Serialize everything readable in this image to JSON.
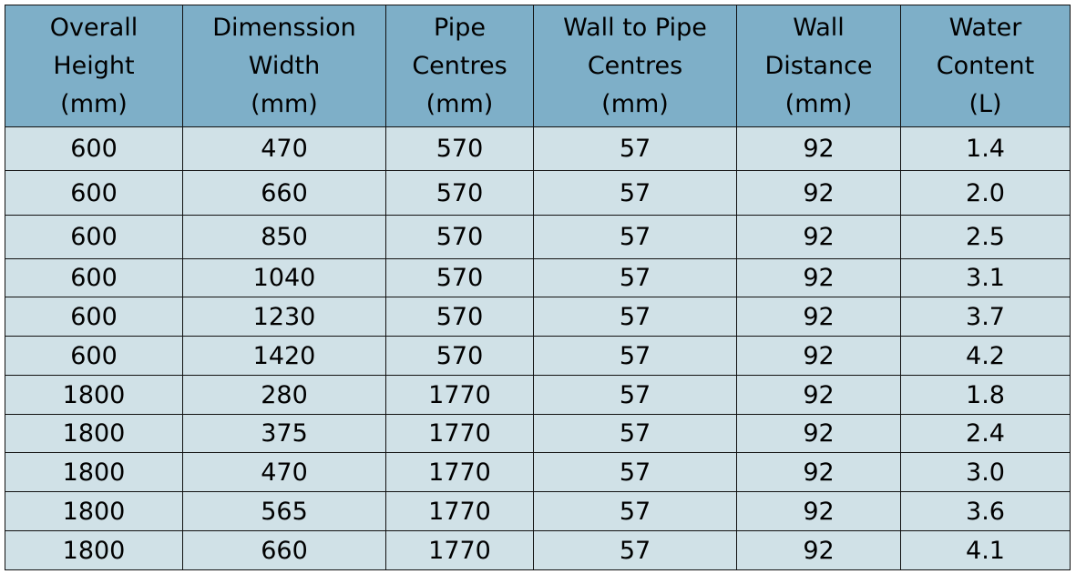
{
  "table": {
    "header": [
      [
        "Overall",
        "Height",
        "(mm)"
      ],
      [
        "Dimenssion",
        "Width",
        "(mm)"
      ],
      [
        "Pipe",
        "Centres",
        "(mm)"
      ],
      [
        "Wall to Pipe",
        "Centres",
        "(mm)"
      ],
      [
        "Wall",
        "Distance",
        "(mm)"
      ],
      [
        "Water",
        "Content",
        "(L)"
      ]
    ],
    "rows": [
      [
        "600",
        "470",
        "570",
        "57",
        "92",
        "1.4"
      ],
      [
        "600",
        "660",
        "570",
        "57",
        "92",
        "2.0"
      ],
      [
        "600",
        "850",
        "570",
        "57",
        "92",
        "2.5"
      ],
      [
        "600",
        "1040",
        "570",
        "57",
        "92",
        "3.1"
      ],
      [
        "600",
        "1230",
        "570",
        "57",
        "92",
        "3.7"
      ],
      [
        "600",
        "1420",
        "570",
        "57",
        "92",
        "4.2"
      ],
      [
        "1800",
        "280",
        "1770",
        "57",
        "92",
        "1.8"
      ],
      [
        "1800",
        "375",
        "1770",
        "57",
        "92",
        "2.4"
      ],
      [
        "1800",
        "470",
        "1770",
        "57",
        "92",
        "3.0"
      ],
      [
        "1800",
        "565",
        "1770",
        "57",
        "92",
        "3.6"
      ],
      [
        "1800",
        "660",
        "1770",
        "57",
        "92",
        "4.1"
      ]
    ]
  }
}
